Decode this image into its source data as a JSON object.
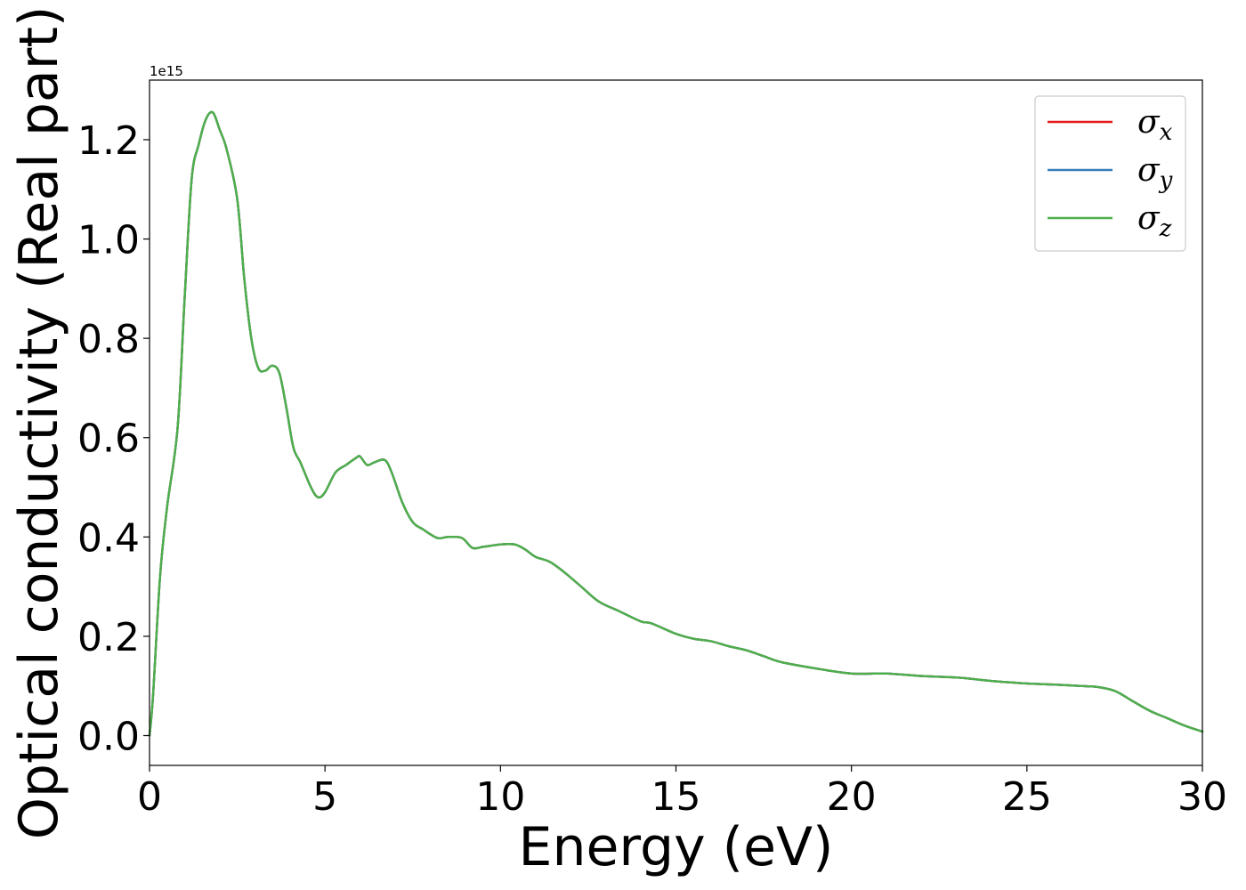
{
  "chart_data": {
    "type": "line",
    "xlabel": "Energy (eV)",
    "ylabel": "Optical conductivity (Real part)",
    "y_offset_label": "1e15",
    "xlim": [
      0,
      30
    ],
    "ylim": [
      -0.06,
      1.32
    ],
    "y_scale": 1000000000000000.0,
    "x_ticks": [
      0,
      5,
      10,
      15,
      20,
      25,
      30
    ],
    "y_ticks": [
      0.0,
      0.2,
      0.4,
      0.6,
      0.8,
      1.0,
      1.2
    ],
    "x_tick_labels": [
      "0",
      "5",
      "10",
      "15",
      "20",
      "25",
      "30"
    ],
    "y_tick_labels": [
      "0.0",
      "0.2",
      "0.4",
      "0.6",
      "0.8",
      "1.0",
      "1.2"
    ],
    "grid": false,
    "legend_position": "top-right",
    "series": [
      {
        "name": "σx",
        "name_main": "σ",
        "name_sub": "x",
        "color": "#e41a1c",
        "x": [
          0,
          0.1,
          0.3,
          0.5,
          0.8,
          1.0,
          1.2,
          1.4,
          1.6,
          1.8,
          2.0,
          2.2,
          2.5,
          2.7,
          2.9,
          3.1,
          3.3,
          3.5,
          3.7,
          3.9,
          4.1,
          4.3,
          4.6,
          4.8,
          5.0,
          5.3,
          5.6,
          5.9,
          6.0,
          6.2,
          6.4,
          6.7,
          6.9,
          7.2,
          7.5,
          7.8,
          8.2,
          8.5,
          8.9,
          9.2,
          9.5,
          10.0,
          10.4,
          10.7,
          11.0,
          11.4,
          11.8,
          12.3,
          12.8,
          13.4,
          14.0,
          14.3,
          15.0,
          15.5,
          16.0,
          16.5,
          17.0,
          17.5,
          18.0,
          19.0,
          20.0,
          21.0,
          22.0,
          23.0,
          24.0,
          25.0,
          25.7,
          26.5,
          27.0,
          27.5,
          28.0,
          28.5,
          29.0,
          29.5,
          30.0
        ],
        "y": [
          0.0,
          0.08,
          0.32,
          0.46,
          0.62,
          0.88,
          1.12,
          1.19,
          1.24,
          1.255,
          1.22,
          1.18,
          1.08,
          0.92,
          0.8,
          0.74,
          0.735,
          0.745,
          0.73,
          0.66,
          0.58,
          0.55,
          0.5,
          0.48,
          0.49,
          0.53,
          0.545,
          0.56,
          0.562,
          0.545,
          0.55,
          0.555,
          0.53,
          0.47,
          0.43,
          0.415,
          0.398,
          0.4,
          0.398,
          0.378,
          0.38,
          0.385,
          0.385,
          0.375,
          0.36,
          0.35,
          0.33,
          0.3,
          0.27,
          0.25,
          0.23,
          0.226,
          0.205,
          0.195,
          0.19,
          0.18,
          0.172,
          0.16,
          0.148,
          0.135,
          0.125,
          0.125,
          0.12,
          0.117,
          0.11,
          0.105,
          0.103,
          0.1,
          0.098,
          0.09,
          0.07,
          0.05,
          0.035,
          0.02,
          0.008
        ]
      },
      {
        "name": "σy",
        "name_main": "σ",
        "name_sub": "y",
        "color": "#377eb8",
        "x": [
          0,
          0.1,
          0.3,
          0.5,
          0.8,
          1.0,
          1.2,
          1.4,
          1.6,
          1.8,
          2.0,
          2.2,
          2.5,
          2.7,
          2.9,
          3.1,
          3.3,
          3.5,
          3.7,
          3.9,
          4.1,
          4.3,
          4.6,
          4.8,
          5.0,
          5.3,
          5.6,
          5.9,
          6.0,
          6.2,
          6.4,
          6.7,
          6.9,
          7.2,
          7.5,
          7.8,
          8.2,
          8.5,
          8.9,
          9.2,
          9.5,
          10.0,
          10.4,
          10.7,
          11.0,
          11.4,
          11.8,
          12.3,
          12.8,
          13.4,
          14.0,
          14.3,
          15.0,
          15.5,
          16.0,
          16.5,
          17.0,
          17.5,
          18.0,
          19.0,
          20.0,
          21.0,
          22.0,
          23.0,
          24.0,
          25.0,
          25.7,
          26.5,
          27.0,
          27.5,
          28.0,
          28.5,
          29.0,
          29.5,
          30.0
        ],
        "y": [
          0.0,
          0.08,
          0.32,
          0.46,
          0.62,
          0.88,
          1.12,
          1.19,
          1.24,
          1.255,
          1.22,
          1.18,
          1.08,
          0.92,
          0.8,
          0.74,
          0.735,
          0.745,
          0.73,
          0.66,
          0.58,
          0.55,
          0.5,
          0.48,
          0.49,
          0.53,
          0.545,
          0.56,
          0.562,
          0.545,
          0.55,
          0.555,
          0.53,
          0.47,
          0.43,
          0.415,
          0.398,
          0.4,
          0.398,
          0.378,
          0.38,
          0.385,
          0.385,
          0.375,
          0.36,
          0.35,
          0.33,
          0.3,
          0.27,
          0.25,
          0.23,
          0.226,
          0.205,
          0.195,
          0.19,
          0.18,
          0.172,
          0.16,
          0.148,
          0.135,
          0.125,
          0.125,
          0.12,
          0.117,
          0.11,
          0.105,
          0.103,
          0.1,
          0.098,
          0.09,
          0.07,
          0.05,
          0.035,
          0.02,
          0.008
        ]
      },
      {
        "name": "σz",
        "name_main": "σ",
        "name_sub": "z",
        "color": "#4daf4a",
        "x": [
          0,
          0.1,
          0.3,
          0.5,
          0.8,
          1.0,
          1.2,
          1.4,
          1.6,
          1.8,
          2.0,
          2.2,
          2.5,
          2.7,
          2.9,
          3.1,
          3.3,
          3.5,
          3.7,
          3.9,
          4.1,
          4.3,
          4.6,
          4.8,
          5.0,
          5.3,
          5.6,
          5.9,
          6.0,
          6.2,
          6.4,
          6.7,
          6.9,
          7.2,
          7.5,
          7.8,
          8.2,
          8.5,
          8.9,
          9.2,
          9.5,
          10.0,
          10.4,
          10.7,
          11.0,
          11.4,
          11.8,
          12.3,
          12.8,
          13.4,
          14.0,
          14.3,
          15.0,
          15.5,
          16.0,
          16.5,
          17.0,
          17.5,
          18.0,
          19.0,
          20.0,
          21.0,
          22.0,
          23.0,
          24.0,
          25.0,
          25.7,
          26.5,
          27.0,
          27.5,
          28.0,
          28.5,
          29.0,
          29.5,
          30.0
        ],
        "y": [
          0.0,
          0.08,
          0.32,
          0.46,
          0.62,
          0.88,
          1.12,
          1.19,
          1.24,
          1.255,
          1.22,
          1.18,
          1.08,
          0.92,
          0.8,
          0.74,
          0.735,
          0.745,
          0.73,
          0.66,
          0.58,
          0.55,
          0.5,
          0.48,
          0.49,
          0.53,
          0.545,
          0.56,
          0.562,
          0.545,
          0.55,
          0.555,
          0.53,
          0.47,
          0.43,
          0.415,
          0.398,
          0.4,
          0.398,
          0.378,
          0.38,
          0.385,
          0.385,
          0.375,
          0.36,
          0.35,
          0.33,
          0.3,
          0.27,
          0.25,
          0.23,
          0.226,
          0.205,
          0.195,
          0.19,
          0.18,
          0.172,
          0.16,
          0.148,
          0.135,
          0.125,
          0.125,
          0.12,
          0.117,
          0.11,
          0.105,
          0.103,
          0.1,
          0.098,
          0.09,
          0.07,
          0.05,
          0.035,
          0.02,
          0.008
        ]
      }
    ]
  }
}
